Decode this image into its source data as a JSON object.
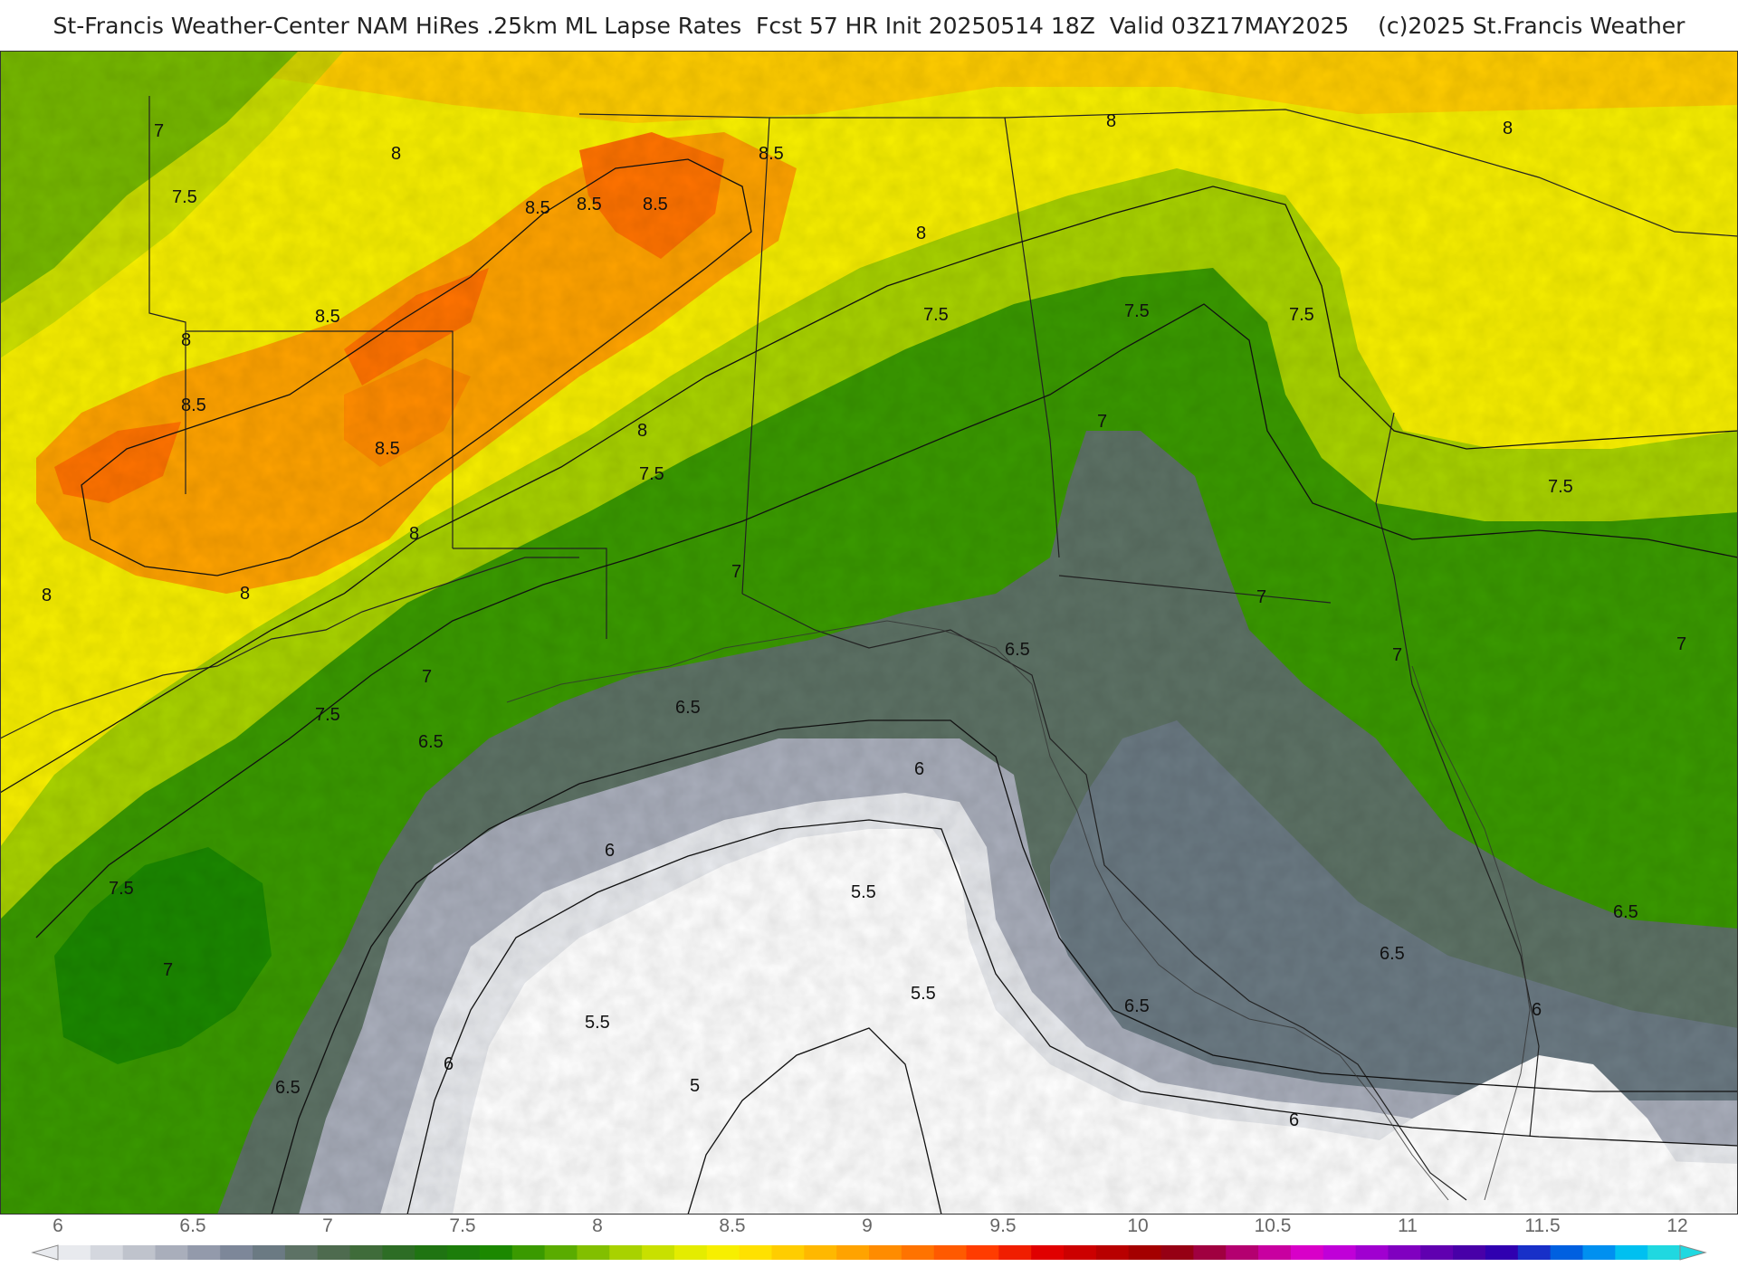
{
  "header": {
    "title": "St-Francis Weather-Center NAM HiRes .25km ML Lapse Rates  Fcst 57 HR Init 20250514 18Z  Valid 03Z17MAY2025    (c)2025 St.Francis Weather"
  },
  "colorbar": {
    "ticks": [
      "6",
      "6.5",
      "7",
      "7.5",
      "8",
      "8.5",
      "9",
      "9.5",
      "10",
      "10.5",
      "11",
      "11.5",
      "12"
    ],
    "colors": [
      "#e8eaee",
      "#d4d7de",
      "#bfc3cc",
      "#a9aebb",
      "#939aab",
      "#7d8799",
      "#6b7a83",
      "#5d7265",
      "#4e6b4f",
      "#3f6c3a",
      "#2d6d25",
      "#1f7412",
      "#1c7d0a",
      "#1b8800",
      "#3a9a00",
      "#5aac00",
      "#82bf00",
      "#a8d200",
      "#c8e000",
      "#e4ec00",
      "#f7ef00",
      "#ffe100",
      "#ffcd00",
      "#ffb800",
      "#ffa300",
      "#ff8c00",
      "#ff7300",
      "#ff5a00",
      "#ff3c00",
      "#f01e00",
      "#e00000",
      "#cc0000",
      "#b80000",
      "#a40000",
      "#960014",
      "#a00040",
      "#b40070",
      "#c800a0",
      "#d800c8",
      "#c000d8",
      "#a000d0",
      "#8000c0",
      "#6000b0",
      "#4800a8",
      "#3000b0",
      "#1830c8",
      "#0060e0",
      "#0090f0",
      "#00c0f0",
      "#20d8e0"
    ]
  },
  "map": {
    "legend": "ML Lapse Rates",
    "contour_labels": [
      {
        "text": "7"
      },
      {
        "text": "7.5"
      },
      {
        "text": "8"
      },
      {
        "text": "8.5"
      },
      {
        "text": "8.5"
      },
      {
        "text": "8.5"
      },
      {
        "text": "8.5"
      },
      {
        "text": "8.5"
      },
      {
        "text": "8.5"
      },
      {
        "text": "8.5"
      },
      {
        "text": "8"
      },
      {
        "text": "8"
      },
      {
        "text": "8"
      },
      {
        "text": "8"
      },
      {
        "text": "8"
      },
      {
        "text": "8"
      },
      {
        "text": "8"
      },
      {
        "text": "8"
      },
      {
        "text": "7.5"
      },
      {
        "text": "7.5"
      },
      {
        "text": "7.5"
      },
      {
        "text": "7.5"
      },
      {
        "text": "7.5"
      },
      {
        "text": "7.5"
      },
      {
        "text": "7.5"
      },
      {
        "text": "7"
      },
      {
        "text": "7"
      },
      {
        "text": "7"
      },
      {
        "text": "7"
      },
      {
        "text": "7"
      },
      {
        "text": "7"
      },
      {
        "text": "7"
      },
      {
        "text": "6.5"
      },
      {
        "text": "6.5"
      },
      {
        "text": "6.5"
      },
      {
        "text": "6.5"
      },
      {
        "text": "6.5"
      },
      {
        "text": "6.5"
      },
      {
        "text": "6.5"
      },
      {
        "text": "6"
      },
      {
        "text": "6"
      },
      {
        "text": "6"
      },
      {
        "text": "6"
      },
      {
        "text": "6"
      },
      {
        "text": "5.5"
      },
      {
        "text": "5.5"
      },
      {
        "text": "5.5"
      },
      {
        "text": "5"
      }
    ]
  }
}
